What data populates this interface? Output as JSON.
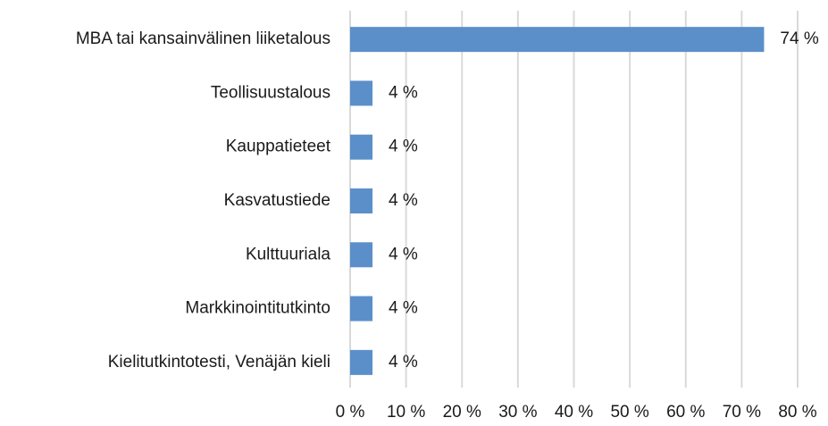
{
  "chart_data": {
    "type": "bar",
    "orientation": "horizontal",
    "categories": [
      "MBA tai kansainvälinen liiketalous",
      "Teollisuustalous",
      "Kauppatieteet",
      "Kasvatustiede",
      "Kulttuuriala",
      "Markkinointitutkinto",
      "Kielitutkintotesti, Venäjän kieli"
    ],
    "values": [
      74,
      4,
      4,
      4,
      4,
      4,
      4
    ],
    "value_labels": [
      "74 %",
      "4 %",
      "4 %",
      "4 %",
      "4 %",
      "4 %",
      "4 %"
    ],
    "color": "#5b8fc9",
    "xlim": [
      0,
      80
    ],
    "xticks": [
      {
        "value": 0,
        "label": "0 %"
      },
      {
        "value": 10,
        "label": "10 %"
      },
      {
        "value": 20,
        "label": "20 %"
      },
      {
        "value": 30,
        "label": "30 %"
      },
      {
        "value": 40,
        "label": "40 %"
      },
      {
        "value": 50,
        "label": "50 %"
      },
      {
        "value": 60,
        "label": "60 %"
      },
      {
        "value": 70,
        "label": "70 %"
      },
      {
        "value": 80,
        "label": "80 %"
      }
    ],
    "grid": true
  }
}
